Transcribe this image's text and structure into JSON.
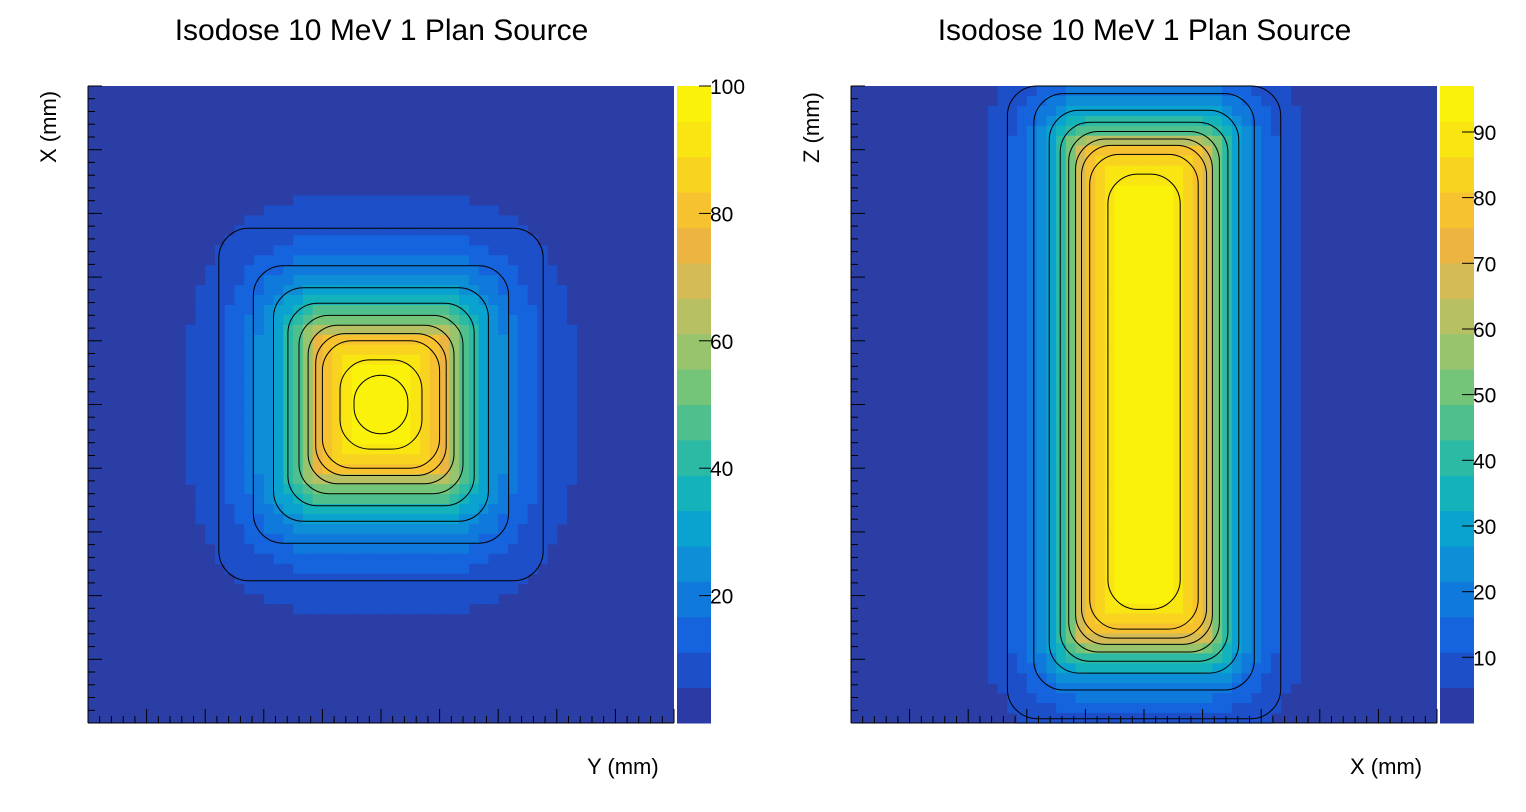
{
  "colors": {
    "background": "#2a3ea6",
    "palette": [
      "#2b3aa4",
      "#1d4fc9",
      "#1664dd",
      "#0f79dc",
      "#0d8ed6",
      "#0aa2cf",
      "#14b2bb",
      "#2cbaa5",
      "#4fc08d",
      "#74c47a",
      "#97c46c",
      "#b7c163",
      "#d5bb55",
      "#ecb542",
      "#f6c230",
      "#f8d421",
      "#f9e511",
      "#faf20a"
    ]
  },
  "chart_data": [
    {
      "type": "heatmap",
      "title": "Isodose 10 MeV 1 Plan Source",
      "xlabel": "Y (mm)",
      "ylabel": "X (mm)",
      "colorbar": {
        "min": 0,
        "max": 100,
        "ticks": [
          "20",
          "40",
          "60",
          "80",
          "100"
        ]
      },
      "field": {
        "shape": "square",
        "cx": 0.5,
        "cy": 0.5,
        "hw": 0.1,
        "hh": 0.1,
        "falloff": 0.085,
        "peak": 100,
        "xlim": [
          0,
          1
        ],
        "ylim": [
          0,
          1
        ]
      },
      "contour_levels": [
        10,
        20,
        30,
        40,
        50,
        60,
        70,
        80,
        90,
        98
      ]
    },
    {
      "type": "heatmap",
      "title": "Isodose 10 MeV 1 Plan Source",
      "xlabel": "X (mm)",
      "ylabel": "Z (mm)",
      "colorbar": {
        "min": 0,
        "max": 97,
        "ticks": [
          "10",
          "20",
          "30",
          "40",
          "50",
          "60",
          "70",
          "80",
          "90"
        ]
      },
      "field": {
        "shape": "column",
        "cx": 0.5,
        "cy": 0.52,
        "hw": 0.1,
        "hh": 0.38,
        "falloff": 0.065,
        "peak": 97,
        "xlim": [
          0,
          1
        ],
        "ylim": [
          0,
          1
        ]
      },
      "contour_levels": [
        10,
        20,
        30,
        40,
        50,
        60,
        70,
        80,
        90
      ]
    }
  ]
}
